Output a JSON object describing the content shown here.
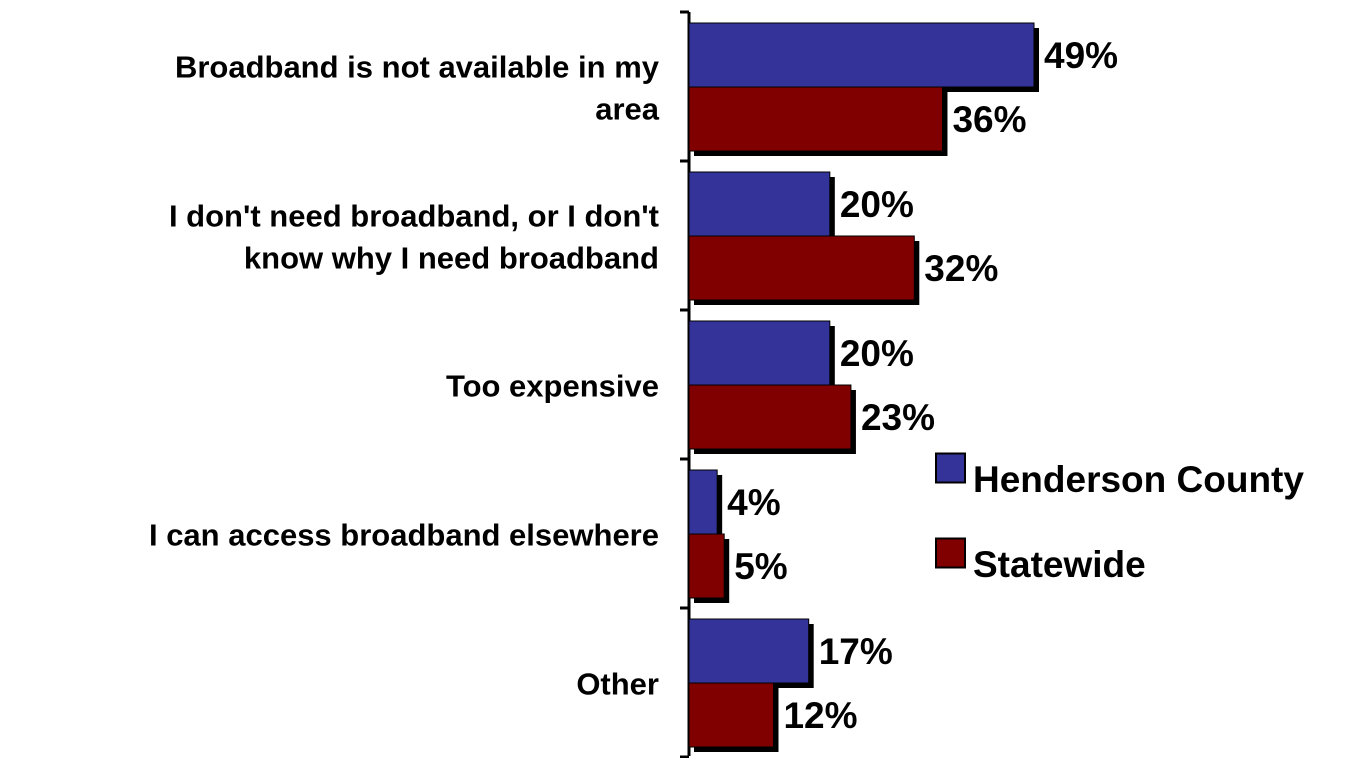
{
  "colors": {
    "henderson": "#333399",
    "statewide": "#800000",
    "shadow": "#000000",
    "text": "#000000"
  },
  "chart_data": {
    "type": "bar",
    "orientation": "horizontal",
    "categories": [
      "Broadband is not available in my area",
      "I don't need broadband, or I don't know why I need broadband",
      "Too expensive",
      "I can access broadband elsewhere",
      "Other"
    ],
    "category_lines": [
      [
        "Broadband is not available in my",
        "area"
      ],
      [
        "I don't need broadband, or I don't",
        "know why I need broadband"
      ],
      [
        "Too expensive"
      ],
      [
        "I can access broadband elsewhere"
      ],
      [
        "Other"
      ]
    ],
    "series": [
      {
        "name": "Henderson County",
        "values": [
          49,
          20,
          20,
          4,
          17
        ],
        "labels": [
          "49%",
          "20%",
          "20%",
          "4%",
          "17%"
        ]
      },
      {
        "name": "Statewide",
        "values": [
          36,
          32,
          23,
          5,
          12
        ],
        "labels": [
          "36%",
          "32%",
          "23%",
          "5%",
          "12%"
        ]
      }
    ],
    "xlim": [
      0,
      49
    ],
    "legend": "right",
    "grid": false
  }
}
